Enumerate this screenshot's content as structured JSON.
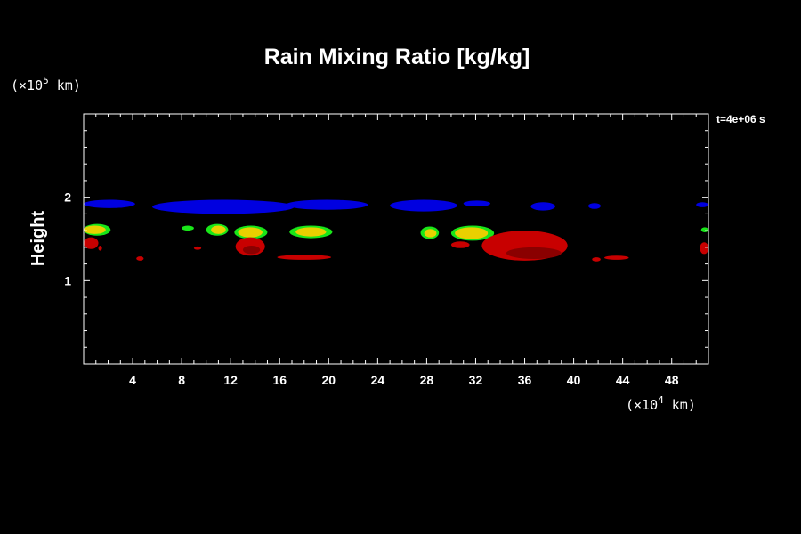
{
  "chart_data": {
    "type": "heatmap",
    "title": "Rain Mixing Ratio [kg/kg]",
    "ylabel": "Height",
    "y_unit": {
      "prefix": "(×10",
      "exp": "5",
      "suffix": " km)"
    },
    "x_unit": {
      "prefix": "(×10",
      "exp": "4",
      "suffix": " km)"
    },
    "time_label": "t=4e+06 s",
    "xlim": [
      0,
      51
    ],
    "ylim": [
      0,
      3
    ],
    "x_ticks": [
      "4",
      "8",
      "12",
      "16",
      "20",
      "24",
      "28",
      "32",
      "36",
      "40",
      "44",
      "48"
    ],
    "y_ticks": [
      "1",
      "2"
    ],
    "colors": {
      "blue": "#0000e0",
      "green": "#19e619",
      "yellow": "#e8d000",
      "orange": "#d9a400",
      "red": "#c80000",
      "darkred": "#8a0000"
    },
    "regions": [
      {
        "color": "blue",
        "x0": 0,
        "x1": 4.2,
        "y0": 1.87,
        "y1": 1.97
      },
      {
        "color": "blue",
        "x0": 5.6,
        "x1": 17.2,
        "y0": 1.8,
        "y1": 1.97
      },
      {
        "color": "blue",
        "x0": 16.5,
        "x1": 23.2,
        "y0": 1.85,
        "y1": 1.97
      },
      {
        "color": "blue",
        "x0": 25.0,
        "x1": 30.5,
        "y0": 1.83,
        "y1": 1.97
      },
      {
        "color": "blue",
        "x0": 31.0,
        "x1": 33.2,
        "y0": 1.89,
        "y1": 1.96
      },
      {
        "color": "blue",
        "x0": 36.5,
        "x1": 38.5,
        "y0": 1.84,
        "y1": 1.94
      },
      {
        "color": "blue",
        "x0": 41.2,
        "x1": 42.2,
        "y0": 1.86,
        "y1": 1.93
      },
      {
        "color": "blue",
        "x0": 50.0,
        "x1": 51,
        "y0": 1.88,
        "y1": 1.94
      },
      {
        "color": "green",
        "x0": 0,
        "x1": 2.2,
        "y0": 1.54,
        "y1": 1.68
      },
      {
        "color": "green",
        "x0": 8.0,
        "x1": 9.0,
        "y0": 1.6,
        "y1": 1.66
      },
      {
        "color": "green",
        "x0": 10.0,
        "x1": 11.8,
        "y0": 1.54,
        "y1": 1.68
      },
      {
        "color": "green",
        "x0": 12.3,
        "x1": 15.0,
        "y0": 1.5,
        "y1": 1.66
      },
      {
        "color": "green",
        "x0": 16.8,
        "x1": 20.3,
        "y0": 1.51,
        "y1": 1.66
      },
      {
        "color": "green",
        "x0": 27.5,
        "x1": 29.0,
        "y0": 1.5,
        "y1": 1.65
      },
      {
        "color": "green",
        "x0": 30.0,
        "x1": 33.5,
        "y0": 1.48,
        "y1": 1.66
      },
      {
        "color": "green",
        "x0": 50.4,
        "x1": 51,
        "y0": 1.58,
        "y1": 1.64
      },
      {
        "color": "yellow",
        "x0": 0,
        "x1": 1.8,
        "y0": 1.56,
        "y1": 1.66
      },
      {
        "color": "yellow",
        "x0": 10.4,
        "x1": 11.6,
        "y0": 1.56,
        "y1": 1.66
      },
      {
        "color": "yellow",
        "x0": 12.6,
        "x1": 14.6,
        "y0": 1.52,
        "y1": 1.64
      },
      {
        "color": "yellow",
        "x0": 17.3,
        "x1": 19.8,
        "y0": 1.53,
        "y1": 1.64
      },
      {
        "color": "yellow",
        "x0": 27.8,
        "x1": 28.8,
        "y0": 1.52,
        "y1": 1.62
      },
      {
        "color": "yellow",
        "x0": 30.3,
        "x1": 33.0,
        "y0": 1.5,
        "y1": 1.64
      },
      {
        "color": "red",
        "x0": 0,
        "x1": 1.2,
        "y0": 1.38,
        "y1": 1.52
      },
      {
        "color": "red",
        "x0": 1.2,
        "x1": 1.5,
        "y0": 1.36,
        "y1": 1.42
      },
      {
        "color": "red",
        "x0": 4.3,
        "x1": 4.9,
        "y0": 1.24,
        "y1": 1.29
      },
      {
        "color": "red",
        "x0": 9.0,
        "x1": 9.6,
        "y0": 1.37,
        "y1": 1.41
      },
      {
        "color": "red",
        "x0": 12.4,
        "x1": 14.8,
        "y0": 1.3,
        "y1": 1.52
      },
      {
        "color": "red",
        "x0": 15.8,
        "x1": 20.2,
        "y0": 1.25,
        "y1": 1.31
      },
      {
        "color": "red",
        "x0": 30.0,
        "x1": 31.5,
        "y0": 1.39,
        "y1": 1.47
      },
      {
        "color": "red",
        "x0": 32.5,
        "x1": 39.5,
        "y0": 1.24,
        "y1": 1.6
      },
      {
        "color": "red",
        "x0": 41.5,
        "x1": 42.2,
        "y0": 1.23,
        "y1": 1.28
      },
      {
        "color": "red",
        "x0": 42.5,
        "x1": 44.5,
        "y0": 1.25,
        "y1": 1.3
      },
      {
        "color": "red",
        "x0": 50.3,
        "x1": 51,
        "y0": 1.32,
        "y1": 1.46
      },
      {
        "color": "darkred",
        "x0": 34.5,
        "x1": 39.0,
        "y0": 1.26,
        "y1": 1.4
      },
      {
        "color": "darkred",
        "x0": 13.0,
        "x1": 14.4,
        "y0": 1.32,
        "y1": 1.42
      }
    ]
  }
}
